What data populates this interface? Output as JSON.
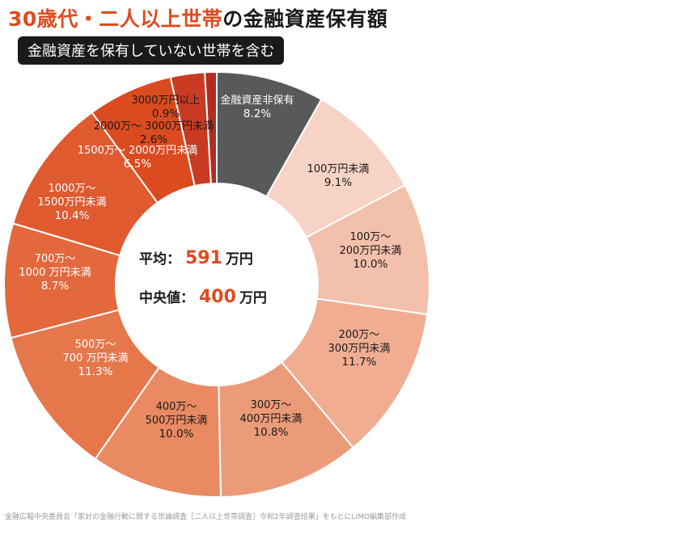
{
  "title": {
    "accent": "30歳代・二人以上世帯",
    "rest": "の金融資産保有額"
  },
  "subtitle": "金融資産を保有していない世帯を含む",
  "center": {
    "mean_label": "平均：",
    "mean_value": "591",
    "mean_unit": "万円",
    "median_label": "中央値：",
    "median_value": "400",
    "median_unit": "万円"
  },
  "source": "金融広報中央委員会「家計の金融行動に関する世論調査［二人以上世帯調査］令和2年調査結果」をもとにLIMO編集部作成",
  "chart_data": {
    "type": "pie",
    "donut": true,
    "unit": "%",
    "categories": [
      "金融資産非保有",
      "100万円未満",
      "100万～200万円未満",
      "200万～300万円未満",
      "300万～400万円未満",
      "400万～500万円未満",
      "500万～700万円未満",
      "700万～1000万円未満",
      "1000万～1500万円未満",
      "1500万～2000万円未満",
      "2000万～3000万円未満",
      "3000万円以上"
    ],
    "values": [
      8.2,
      9.1,
      10.0,
      11.7,
      10.8,
      10.0,
      11.3,
      8.7,
      10.4,
      6.5,
      2.6,
      0.9
    ],
    "label_lines": [
      [
        "金融資産非保有"
      ],
      [
        "100万円未満"
      ],
      [
        "100万～",
        "200万円未満"
      ],
      [
        "200万～",
        "300万円未満"
      ],
      [
        "300万～",
        "400万円未満"
      ],
      [
        "400万～",
        "500万円未満"
      ],
      [
        "500万～",
        "700 万円未満"
      ],
      [
        "700万～",
        "1000 万円未満"
      ],
      [
        "1000万～",
        "1500万円未満"
      ],
      [
        "1500万～ 2000万円未満"
      ],
      [
        "2000万～ 3000万円未満"
      ],
      [
        "3000万円以上"
      ]
    ],
    "value_labels": [
      "8.2%",
      "9.1%",
      "10.0%",
      "11.7%",
      "10.8%",
      "10.0%",
      "11.3%",
      "8.7%",
      "10.4%",
      "6.5%",
      "2.6%",
      "0.9%"
    ],
    "colors": [
      "#58595b",
      "#f6d3c5",
      "#f3c0ab",
      "#f0ad92",
      "#ec9b79",
      "#e98a62",
      "#e6774b",
      "#e3683c",
      "#e05a30",
      "#dc4a1f",
      "#c83b22",
      "#b22c22"
    ],
    "label_colors": [
      "#ffffff",
      "#1a1a1a",
      "#1a1a1a",
      "#1a1a1a",
      "#1a1a1a",
      "#1a1a1a",
      "#ffffff",
      "#ffffff",
      "#ffffff",
      "#ffffff",
      "#1a1a1a",
      "#1a1a1a"
    ]
  }
}
